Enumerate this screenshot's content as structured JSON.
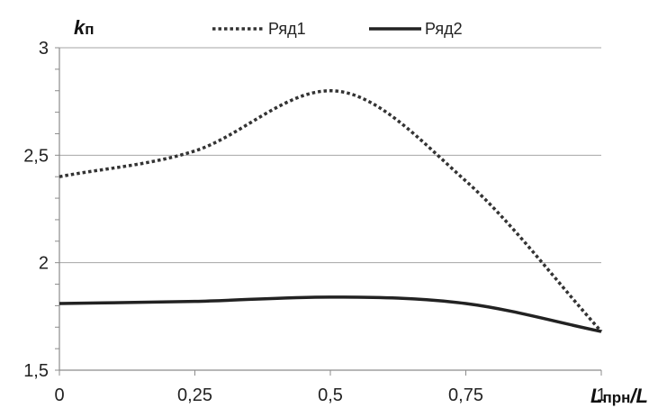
{
  "chart_data": {
    "type": "line",
    "ylabel": {
      "main": "k",
      "sub": "п"
    },
    "xlabel": {
      "main": "L",
      "sub": "прн",
      "after": "/L"
    },
    "xlim": [
      0,
      1
    ],
    "ylim": [
      1.5,
      3
    ],
    "x_ticks": [
      {
        "value": 0,
        "label": "0"
      },
      {
        "value": 0.25,
        "label": "0,25"
      },
      {
        "value": 0.5,
        "label": "0,5"
      },
      {
        "value": 0.75,
        "label": "0,75"
      },
      {
        "value": 1,
        "label": "1"
      }
    ],
    "y_ticks": [
      {
        "value": 1.5,
        "label": "1,5"
      },
      {
        "value": 2,
        "label": "2"
      },
      {
        "value": 2.5,
        "label": "2,5"
      },
      {
        "value": 3,
        "label": "3"
      }
    ],
    "grid": "horizontal",
    "legend_position": "top",
    "series": [
      {
        "name": "Ряд1",
        "style": "dotted",
        "color": "#333333",
        "x": [
          0,
          0.25,
          0.5,
          0.75,
          1
        ],
        "y": [
          2.4,
          2.52,
          2.8,
          2.38,
          1.68
        ]
      },
      {
        "name": "Ряд2",
        "style": "solid",
        "color": "#222222",
        "x": [
          0,
          0.25,
          0.5,
          0.75,
          1
        ],
        "y": [
          1.81,
          1.82,
          1.84,
          1.81,
          1.68
        ]
      }
    ]
  }
}
